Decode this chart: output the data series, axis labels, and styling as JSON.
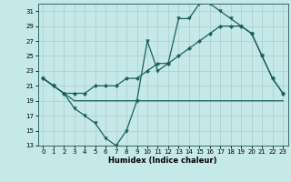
{
  "xlabel": "Humidex (Indice chaleur)",
  "background_color": "#c5e8e8",
  "grid_color": "#aacccc",
  "line_color": "#1a6060",
  "xlim": [
    -0.5,
    23.5
  ],
  "ylim": [
    13,
    32
  ],
  "xticks": [
    0,
    1,
    2,
    3,
    4,
    5,
    6,
    7,
    8,
    9,
    10,
    11,
    12,
    13,
    14,
    15,
    16,
    17,
    18,
    19,
    20,
    21,
    22,
    23
  ],
  "yticks": [
    13,
    15,
    17,
    19,
    21,
    23,
    25,
    27,
    29,
    31
  ],
  "curve1_x": [
    0,
    1,
    2,
    3,
    4,
    5,
    6,
    7,
    8,
    9,
    10,
    11,
    12,
    13,
    14,
    15,
    16,
    17,
    18,
    19,
    20,
    21,
    22,
    23
  ],
  "curve1_y": [
    22,
    21,
    20,
    18,
    17,
    16,
    14,
    13,
    15,
    19,
    27,
    23,
    24,
    30,
    30,
    32,
    32,
    31,
    30,
    29,
    28,
    25,
    22,
    20
  ],
  "curve2_x": [
    0,
    1,
    2,
    3,
    4,
    5,
    6,
    7,
    8,
    9,
    10,
    11,
    12,
    13,
    14,
    15,
    16,
    17,
    18,
    19,
    20,
    21,
    22,
    23
  ],
  "curve2_y": [
    22,
    21,
    20,
    19,
    19,
    19,
    19,
    19,
    19,
    19,
    19,
    19,
    19,
    19,
    19,
    19,
    19,
    19,
    19,
    19,
    19,
    19,
    19,
    19
  ],
  "curve3_x": [
    0,
    1,
    2,
    3,
    4,
    5,
    6,
    7,
    8,
    9,
    10,
    11,
    12,
    13,
    14,
    15,
    16,
    17,
    18,
    19,
    20,
    21,
    22,
    23
  ],
  "curve3_y": [
    22,
    21,
    20,
    20,
    20,
    21,
    21,
    21,
    22,
    22,
    23,
    24,
    24,
    25,
    26,
    27,
    28,
    29,
    29,
    29,
    28,
    25,
    22,
    20
  ]
}
